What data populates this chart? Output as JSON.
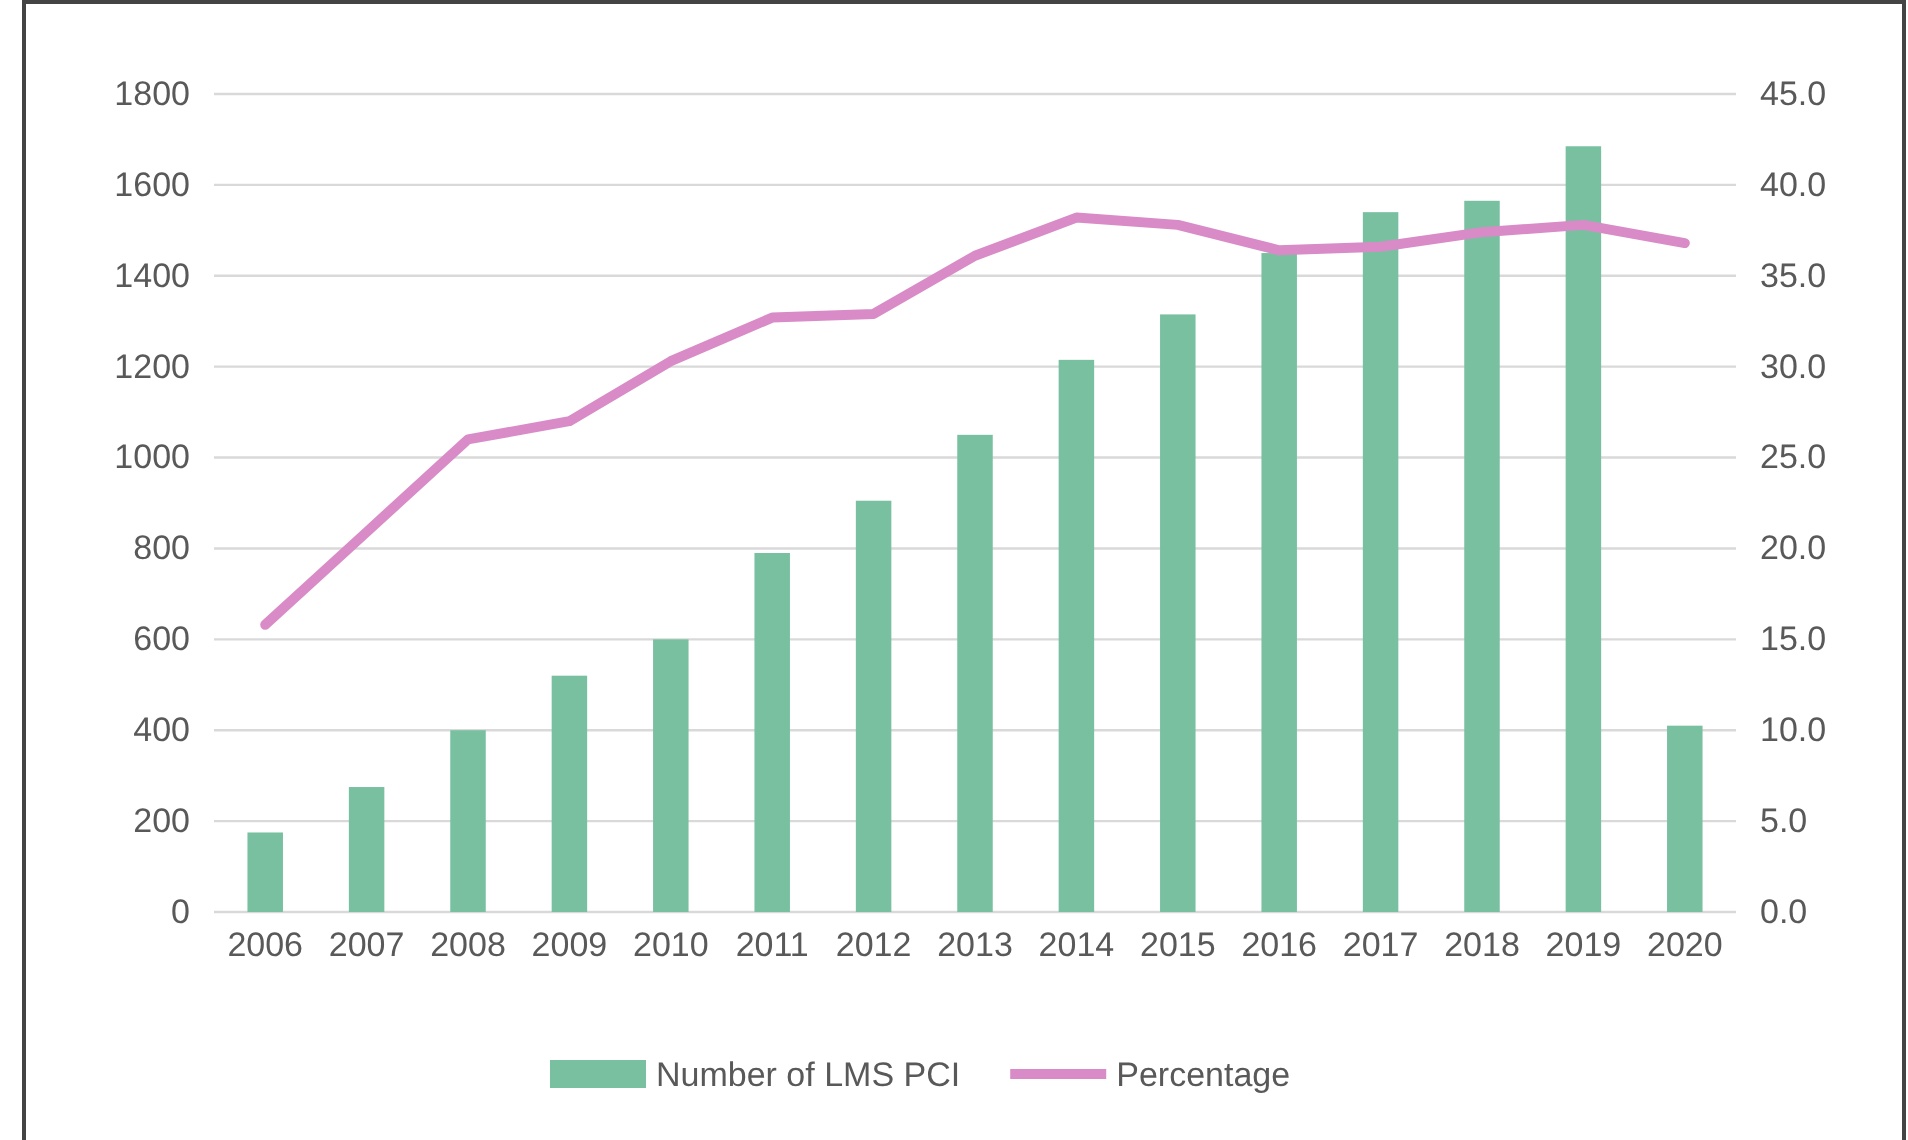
{
  "chart_data": {
    "type": "bar",
    "categories": [
      "2006",
      "2007",
      "2008",
      "2009",
      "2010",
      "2011",
      "2012",
      "2013",
      "2014",
      "2015",
      "2016",
      "2017",
      "2018",
      "2019",
      "2020"
    ],
    "series": [
      {
        "name": "Number of LMS PCI",
        "color": "#79c0a1",
        "values": [
          175,
          275,
          400,
          520,
          600,
          790,
          905,
          1050,
          1215,
          1315,
          1450,
          1540,
          1565,
          1685,
          410
        ]
      },
      {
        "name": "Percentage",
        "type": "line",
        "axis": "y2",
        "color": "#d88bc6",
        "values": [
          15.8,
          20.9,
          26.0,
          27.0,
          30.3,
          32.7,
          32.9,
          36.1,
          38.2,
          37.8,
          36.4,
          36.6,
          37.4,
          37.8,
          36.8
        ]
      }
    ],
    "ylim": [
      0,
      1800
    ],
    "yticks": [
      0,
      200,
      400,
      600,
      800,
      1000,
      1200,
      1400,
      1600,
      1800
    ],
    "y2lim": [
      0,
      45
    ],
    "y2ticks": [
      {
        "value": 0,
        "label": "0.0"
      },
      {
        "value": 5,
        "label": "5.0"
      },
      {
        "value": 10,
        "label": "10.0"
      },
      {
        "value": 15,
        "label": "15.0"
      },
      {
        "value": 20,
        "label": "20.0"
      },
      {
        "value": 25,
        "label": "25.0"
      },
      {
        "value": 30,
        "label": "30.0"
      },
      {
        "value": 35,
        "label": "35.0"
      },
      {
        "value": 40,
        "label": "40.0"
      },
      {
        "value": 45,
        "label": "45.0"
      }
    ],
    "grid": "y",
    "legend": "bottom",
    "marker": "none",
    "line_style": "solid"
  }
}
